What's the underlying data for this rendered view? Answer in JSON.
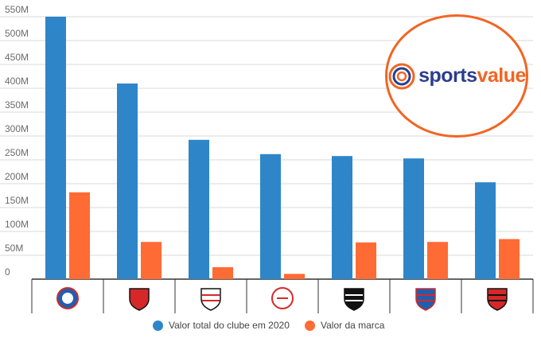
{
  "chart_data": {
    "type": "bar",
    "categories": [
      "Bahia",
      "Sport",
      "Santa Cruz",
      "Náutico",
      "Ceará",
      "Fortaleza",
      "Vitória"
    ],
    "series": [
      {
        "name": "Valor total do clube em 2020",
        "color": "#2e86c9",
        "values": [
          550,
          410,
          292,
          262,
          258,
          253,
          203
        ]
      },
      {
        "name": "Valor da marca",
        "color": "#ff6b35",
        "values": [
          182,
          78,
          25,
          11,
          77,
          78,
          84
        ]
      }
    ],
    "yticks": [
      "0",
      "50M",
      "100M",
      "150M",
      "200M",
      "250M",
      "300M",
      "350M",
      "400M",
      "450M",
      "500M",
      "550M"
    ],
    "ylim": [
      0,
      550
    ],
    "grid": true,
    "legend": "bottom"
  },
  "brand": {
    "sports": "sports",
    "value": "value",
    "ring_colors": [
      "#f26522",
      "#2b3d8f"
    ]
  },
  "crest_icons": [
    "bahia-crest-icon",
    "sport-crest-icon",
    "santa-cruz-crest-icon",
    "nautico-crest-icon",
    "ceara-crest-icon",
    "fortaleza-crest-icon",
    "vitoria-crest-icon"
  ]
}
